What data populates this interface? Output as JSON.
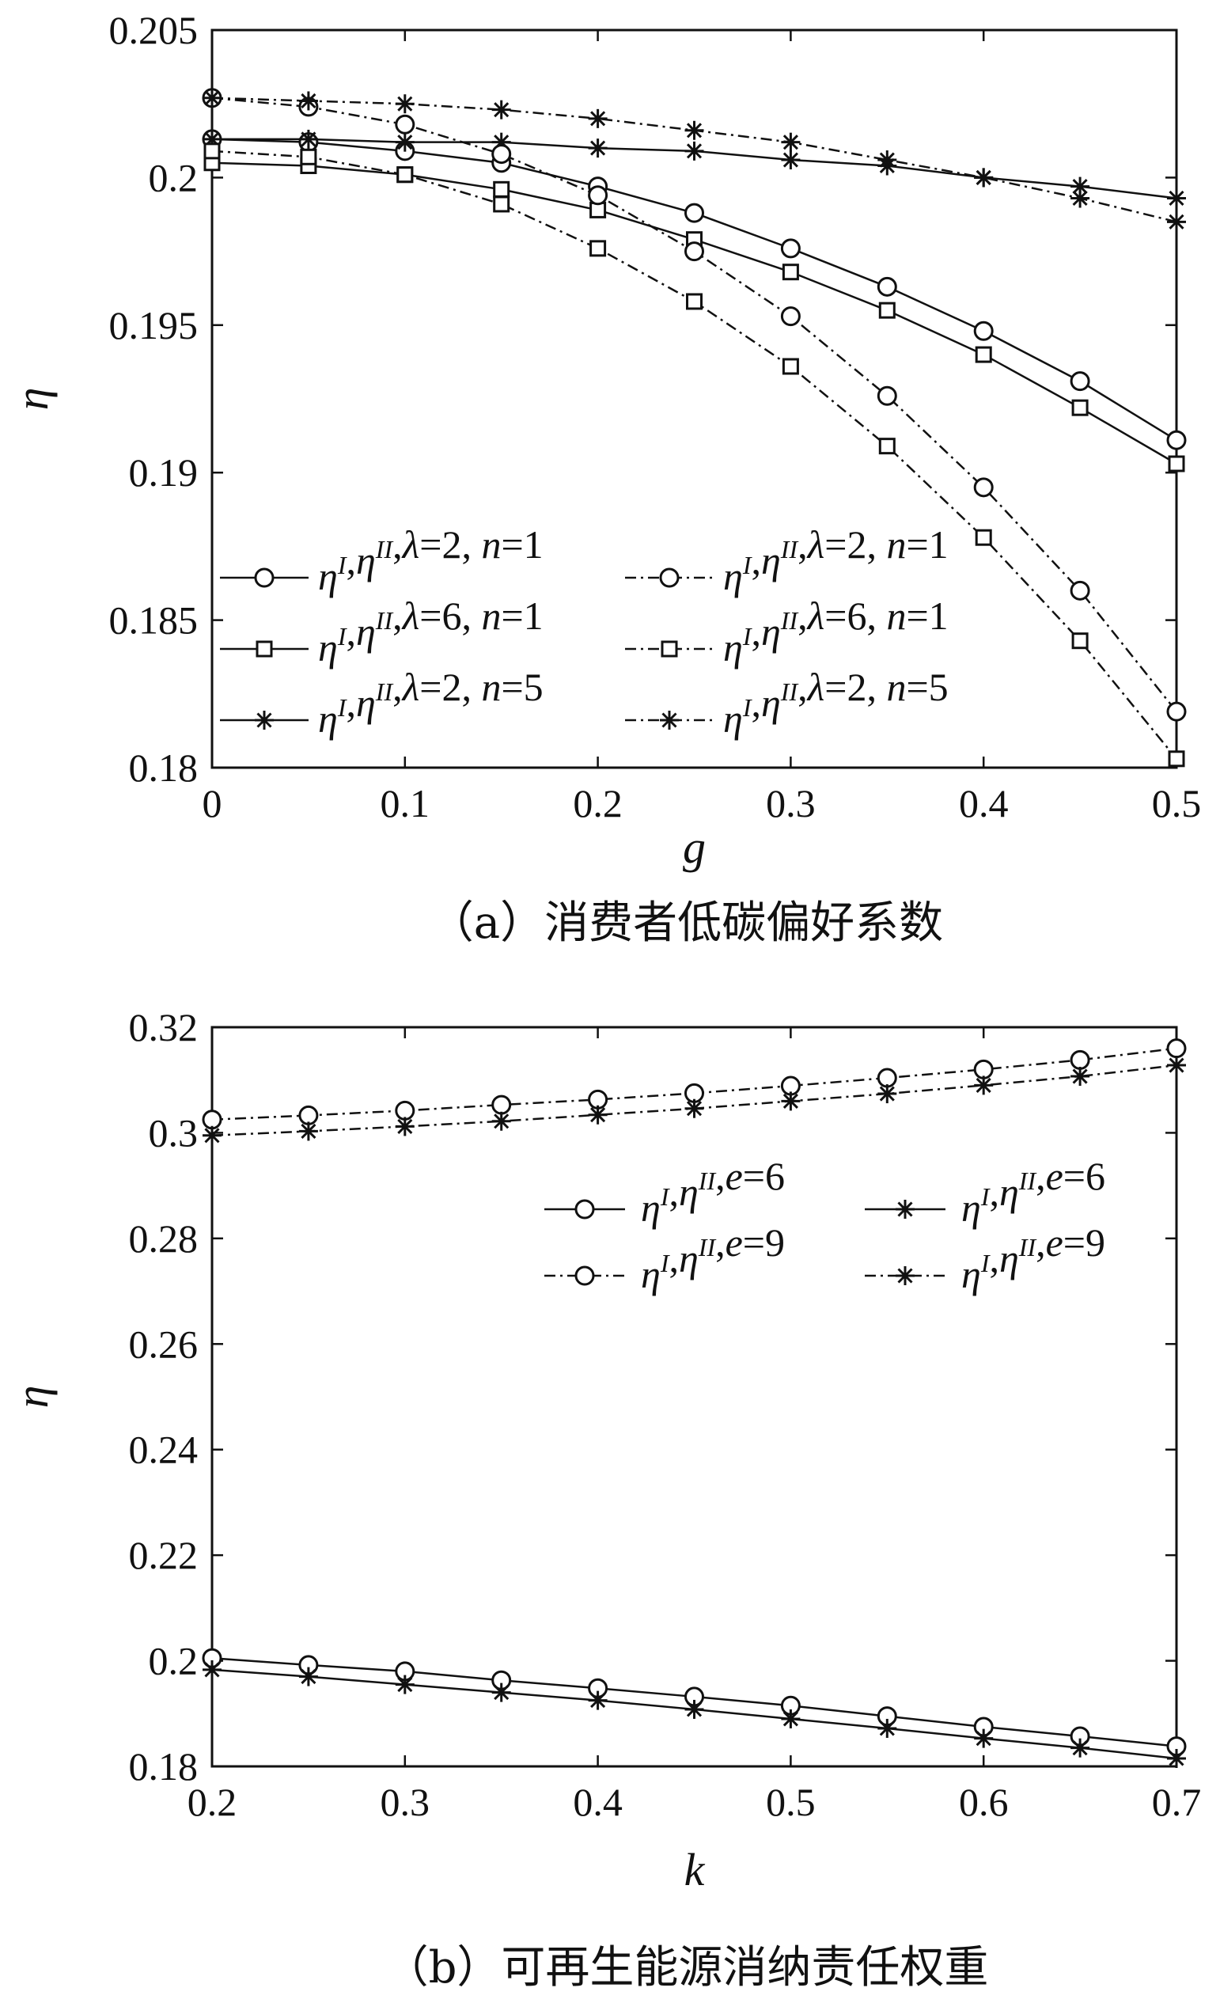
{
  "chart_data": [
    {
      "type": "line",
      "panel": "a",
      "caption": "（a）消费者低碳偏好系数",
      "xlabel": "g",
      "ylabel": "η",
      "xlim": [
        0,
        0.5
      ],
      "ylim": [
        0.18,
        0.205
      ],
      "xticks": [
        0,
        0.1,
        0.2,
        0.3,
        0.4,
        0.5
      ],
      "xtick_labels": [
        "0",
        "0.1",
        "0.2",
        "0.3",
        "0.4",
        "0.5"
      ],
      "yticks": [
        0.18,
        0.185,
        0.19,
        0.195,
        0.2,
        0.205
      ],
      "ytick_labels": [
        "0.18",
        "0.185",
        "0.19",
        "0.195",
        "0.2",
        "0.205"
      ],
      "legend_position": "lower-left",
      "x": [
        0,
        0.05,
        0.1,
        0.15,
        0.2,
        0.25,
        0.3,
        0.35,
        0.4,
        0.45,
        0.5
      ],
      "series": [
        {
          "name": "η^I,η^II,λ=2, n=1",
          "line": "solid",
          "marker": "circle",
          "values": [
            0.2013,
            0.2012,
            0.2009,
            0.2005,
            0.1997,
            0.1988,
            0.1976,
            0.1963,
            0.1948,
            0.1931,
            0.1911
          ]
        },
        {
          "name": "η^I,η^II,λ=6, n=1",
          "line": "solid",
          "marker": "square",
          "values": [
            0.2005,
            0.2004,
            0.2001,
            0.1996,
            0.1989,
            0.1979,
            0.1968,
            0.1955,
            0.194,
            0.1922,
            0.1903
          ]
        },
        {
          "name": "η^I,η^II,λ=2, n=5",
          "line": "solid",
          "marker": "star",
          "values": [
            0.2013,
            0.2013,
            0.2012,
            0.2012,
            0.201,
            0.2009,
            0.2006,
            0.2004,
            0.2,
            0.1997,
            0.1993
          ]
        },
        {
          "name": "η^I,η^II,λ=2, n=1",
          "line": "dashdot",
          "marker": "circle",
          "values": [
            0.2027,
            0.2024,
            0.2018,
            0.2008,
            0.1994,
            0.1975,
            0.1953,
            0.1926,
            0.1895,
            0.186,
            0.1819
          ]
        },
        {
          "name": "η^I,η^II,λ=6, n=1",
          "line": "dashdot",
          "marker": "square",
          "values": [
            0.2009,
            0.2007,
            0.2001,
            0.1991,
            0.1976,
            0.1958,
            0.1936,
            0.1909,
            0.1878,
            0.1843,
            0.1803
          ]
        },
        {
          "name": "η^I,η^II,λ=2, n=5",
          "line": "dashdot",
          "marker": "star",
          "values": [
            0.2027,
            0.2026,
            0.2025,
            0.2023,
            0.202,
            0.2016,
            0.2012,
            0.2006,
            0.2,
            0.1993,
            0.1985
          ]
        }
      ]
    },
    {
      "type": "line",
      "panel": "b",
      "caption": "（b）可再生能源消纳责任权重",
      "xlabel": "k",
      "ylabel": "η",
      "xlim": [
        0.2,
        0.7
      ],
      "ylim": [
        0.18,
        0.32
      ],
      "xticks": [
        0.2,
        0.3,
        0.4,
        0.5,
        0.6,
        0.7
      ],
      "xtick_labels": [
        "0.2",
        "0.3",
        "0.4",
        "0.5",
        "0.6",
        "0.7"
      ],
      "yticks": [
        0.18,
        0.2,
        0.22,
        0.24,
        0.26,
        0.28,
        0.3,
        0.32
      ],
      "ytick_labels": [
        "0.18",
        "0.2",
        "0.22",
        "0.24",
        "0.26",
        "0.28",
        "0.3",
        "0.32"
      ],
      "legend_position": "upper-right",
      "x": [
        0.2,
        0.25,
        0.3,
        0.35,
        0.4,
        0.45,
        0.5,
        0.55,
        0.6,
        0.65,
        0.7
      ],
      "series": [
        {
          "name": "η^I,η^II,e=6",
          "line": "solid",
          "marker": "circle",
          "values": [
            0.2005,
            0.1992,
            0.198,
            0.1963,
            0.1948,
            0.1932,
            0.1915,
            0.1895,
            0.1875,
            0.1857,
            0.1838
          ]
        },
        {
          "name": "η^I,η^II,e=6",
          "line": "solid",
          "marker": "star",
          "values": [
            0.1983,
            0.197,
            0.1955,
            0.194,
            0.1925,
            0.1908,
            0.189,
            0.1872,
            0.1853,
            0.1835,
            0.1815
          ]
        },
        {
          "name": "η^I,η^II,e=9",
          "line": "dashdot",
          "marker": "circle",
          "values": [
            0.3025,
            0.3033,
            0.3042,
            0.3053,
            0.3063,
            0.3075,
            0.3089,
            0.3104,
            0.312,
            0.3138,
            0.316
          ]
        },
        {
          "name": "η^I,η^II,e=9",
          "line": "dashdot",
          "marker": "star",
          "values": [
            0.2995,
            0.3003,
            0.3012,
            0.3022,
            0.3034,
            0.3046,
            0.306,
            0.3074,
            0.309,
            0.3107,
            0.3128
          ]
        }
      ]
    }
  ]
}
